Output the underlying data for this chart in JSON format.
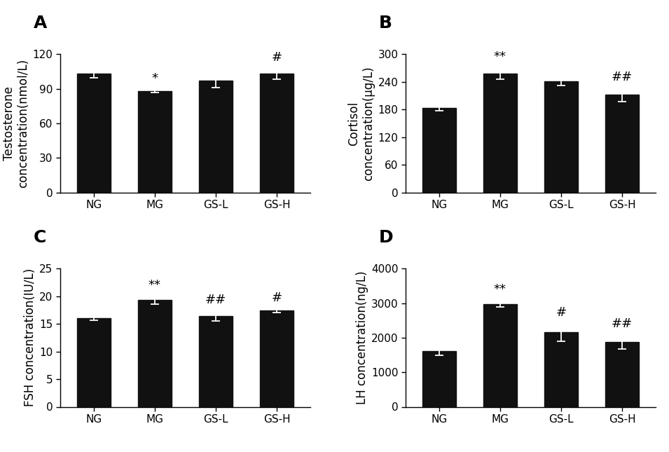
{
  "panels": [
    {
      "label": "A",
      "ylabel": "Testosterone\nconcentration(nmol/L)",
      "categories": [
        "NG",
        "MG",
        "GS-L",
        "GS-H"
      ],
      "values": [
        103,
        88,
        97,
        103
      ],
      "errors": [
        3.5,
        1.5,
        6.0,
        4.5
      ],
      "ylim": [
        0,
        120
      ],
      "yticks": [
        0,
        30,
        60,
        90,
        120
      ],
      "annotations": [
        "",
        "*",
        "",
        "#"
      ],
      "ann_offsets": [
        0,
        0,
        0,
        0
      ]
    },
    {
      "label": "B",
      "ylabel": "Cortisol\nconcentration(μg/L)",
      "categories": [
        "NG",
        "MG",
        "GS-L",
        "GS-H"
      ],
      "values": [
        183,
        258,
        242,
        212
      ],
      "errors": [
        6,
        12,
        10,
        15
      ],
      "ylim": [
        0,
        300
      ],
      "yticks": [
        0,
        60,
        120,
        180,
        240,
        300
      ],
      "annotations": [
        "",
        "**",
        "",
        "##"
      ],
      "ann_offsets": [
        0,
        0,
        0,
        0
      ]
    },
    {
      "label": "C",
      "ylabel": "FSH concentration(IU/L)",
      "categories": [
        "NG",
        "MG",
        "GS-L",
        "GS-H"
      ],
      "values": [
        16.0,
        19.3,
        16.4,
        17.4
      ],
      "errors": [
        0.3,
        0.7,
        0.9,
        0.3
      ],
      "ylim": [
        0,
        25
      ],
      "yticks": [
        0,
        5,
        10,
        15,
        20,
        25
      ],
      "annotations": [
        "",
        "**",
        "##",
        "#"
      ],
      "ann_offsets": [
        0,
        0,
        0,
        0
      ]
    },
    {
      "label": "D",
      "ylabel": "LH concentration(ng/L)",
      "categories": [
        "NG",
        "MG",
        "GS-L",
        "GS-H"
      ],
      "values": [
        1620,
        2980,
        2150,
        1880
      ],
      "errors": [
        120,
        90,
        250,
        200
      ],
      "ylim": [
        0,
        4000
      ],
      "yticks": [
        0,
        1000,
        2000,
        3000,
        4000
      ],
      "annotations": [
        "",
        "**",
        "#",
        "##"
      ],
      "ann_offsets": [
        0,
        0,
        0,
        0
      ]
    }
  ],
  "bar_color": "#111111",
  "bar_width": 0.55,
  "error_color": "#111111",
  "capsize": 4,
  "label_fontsize": 12,
  "tick_fontsize": 11,
  "ann_fontsize": 13,
  "panel_label_fontsize": 18,
  "background_color": "#ffffff"
}
